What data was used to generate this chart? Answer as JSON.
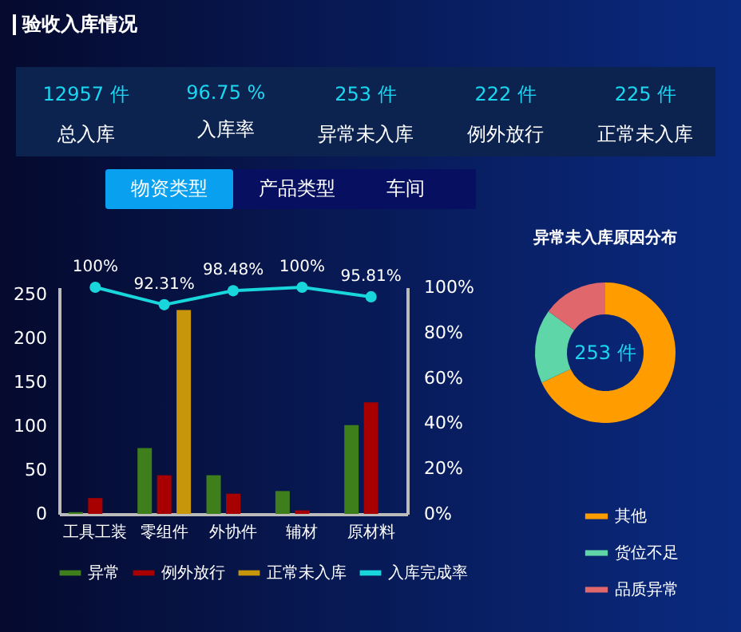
{
  "chart_data": [
    {
      "type": "other",
      "title": "验收入库情况",
      "categories": [
        "总入库",
        "入库率",
        "异常未入库",
        "例外放行",
        "正常未入库"
      ],
      "value_labels": [
        "12957 件",
        "96.75 %",
        "253 件",
        "222 件",
        "225 件"
      ],
      "annotations": [
        "物资类型",
        "产品类型",
        "车间"
      ]
    },
    {
      "type": "bar",
      "categories": [
        "工具工装",
        "零组件",
        "外协件",
        "辅材",
        "原材料"
      ],
      "ylim": [
        0,
        258
      ],
      "yticks": [
        0,
        50,
        100,
        150,
        200,
        250
      ],
      "y2lim": [
        0,
        100
      ],
      "y2ticks": [
        {
          "value": 0,
          "label": "0%"
        },
        {
          "value": 20,
          "label": "20%"
        },
        {
          "value": 40,
          "label": "40%"
        },
        {
          "value": 60,
          "label": "60%"
        },
        {
          "value": 80,
          "label": "80%"
        },
        {
          "value": 100,
          "label": "100%"
        }
      ],
      "legend": "bottom",
      "series": [
        {
          "name": "异常",
          "color": "#3f7f1b",
          "values": [
            2,
            75,
            44,
            26,
            101
          ]
        },
        {
          "name": "例外放行",
          "color": "#a80000",
          "values": [
            18,
            44,
            23,
            4,
            127
          ]
        },
        {
          "name": "正常未入库",
          "color": "#c8960a",
          "values": [
            0,
            232,
            0,
            0,
            0
          ]
        },
        {
          "name": "入库完成率",
          "type": "line",
          "axis": "y2",
          "color": "#19d6dc",
          "marker": "circle",
          "values": [
            100,
            92.31,
            98.48,
            100,
            95.81
          ],
          "value_labels": [
            "100%",
            "92.31%",
            "98.48%",
            "100%",
            "95.81%"
          ]
        }
      ]
    },
    {
      "type": "donut",
      "title": "异常未入库原因分布",
      "categories": [
        "其他",
        "货位不足",
        "品质异常"
      ],
      "values": [
        68,
        17,
        15
      ],
      "colors": [
        "#ff9c00",
        "#5ed6a8",
        "#e0686c"
      ],
      "legend": "bottom",
      "annotations": [
        "253 件"
      ]
    }
  ]
}
